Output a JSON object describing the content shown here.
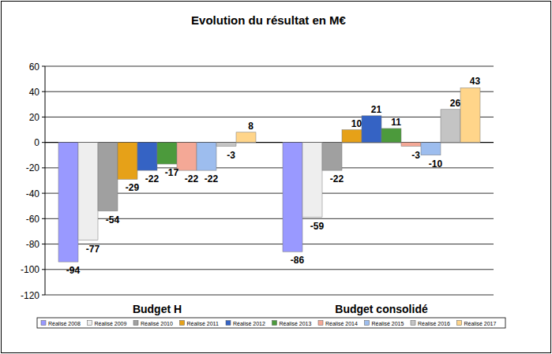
{
  "chart_data": {
    "type": "bar",
    "title": "Evolution du résultat en M€",
    "categories": [
      "Budget H",
      "Budget consolidé"
    ],
    "series": [
      {
        "name": "Réalisé 2008",
        "color": "#9999ff",
        "values": [
          -94,
          -86
        ]
      },
      {
        "name": "Réalisé 2009",
        "color": "#eeeeee",
        "values": [
          -77,
          -59
        ]
      },
      {
        "name": "Réalisé 2010",
        "color": "#a0a0a0",
        "values": [
          -54,
          -22
        ]
      },
      {
        "name": "Réalisé 2011",
        "color": "#e6a118",
        "values": [
          -29,
          10
        ]
      },
      {
        "name": "Réalisé 2012",
        "color": "#3563c4",
        "values": [
          -22,
          21
        ]
      },
      {
        "name": "Réalisé 2013",
        "color": "#4c9a3c",
        "values": [
          -17,
          11
        ]
      },
      {
        "name": "Réalisé 2014",
        "color": "#f4a896",
        "values": [
          -22,
          -3
        ]
      },
      {
        "name": "Réalisé 2015",
        "color": "#9dbdee",
        "values": [
          -22,
          -10
        ]
      },
      {
        "name": "Réalisé 2016",
        "color": "#c4c4c4",
        "values": [
          -3,
          26
        ]
      },
      {
        "name": "Réalisé 2017",
        "color": "#ffd58a",
        "values": [
          8,
          43
        ]
      }
    ],
    "ylim": [
      -120,
      60
    ],
    "yticks": [
      -120,
      -100,
      -80,
      -60,
      -40,
      -20,
      0,
      20,
      40,
      60
    ],
    "grid": true,
    "legend": "bottom",
    "data_labels": true
  }
}
